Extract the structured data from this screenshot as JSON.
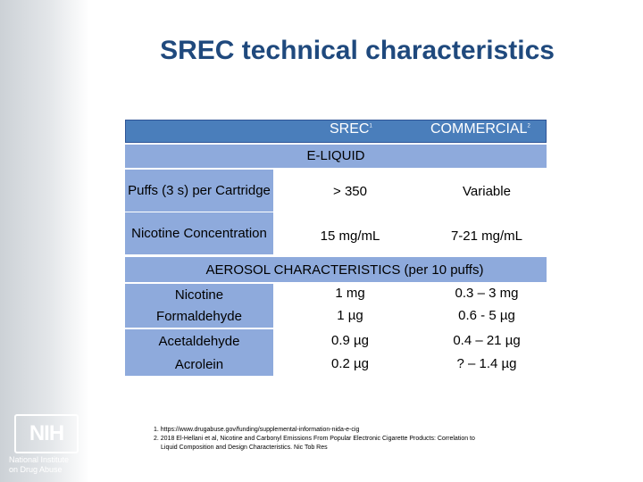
{
  "title": "SREC technical characteristics",
  "table": {
    "col_srec": "SREC",
    "col_srec_ref": "1",
    "col_commercial": "COMMERCIAL",
    "col_commercial_ref": "2",
    "section_eliquid": "E-LIQUID",
    "eliquid_rows": [
      {
        "label": "Puffs (3 s) per Cartridge",
        "srec": "> 350",
        "commercial": "Variable"
      },
      {
        "label": "Nicotine Concentration",
        "srec": "15 mg/mL",
        "commercial": "7-21 mg/mL"
      }
    ],
    "section_aerosol": "AEROSOL CHARACTERISTICS (per 10 puffs)",
    "aerosol_rows": [
      {
        "label": "Nicotine",
        "srec": "1 mg",
        "commercial": "0.3 – 3 mg"
      },
      {
        "label": "Formaldehyde",
        "srec": "1 µg",
        "commercial": "0.6 - 5 µg"
      },
      {
        "label": "Acetaldehyde",
        "srec": "0.9 µg",
        "commercial": "0.4 – 21 µg"
      },
      {
        "label": "Acrolein",
        "srec": "0.2 µg",
        "commercial": "? – 1.4 µg"
      }
    ]
  },
  "footnotes": [
    "1. https://www.drugabuse.gov/funding/supplemental-information-nida-e-cig",
    "2. 2018 El-Hellani et al, Nicotine and Carbonyl Emissions From Popular Electronic Cigarette Products: Correlation to",
    "    Liquid Composition and Design Characteristics. Nic Tob Res"
  ],
  "logo": {
    "letters": "NIH",
    "line1": "National Institute",
    "line2": "on Drug Abuse"
  },
  "colors": {
    "title": "#1f497d",
    "header": "#4a7ebb",
    "band": "#8eaadc"
  }
}
